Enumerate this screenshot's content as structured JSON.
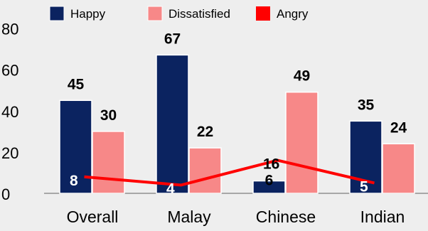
{
  "chart_data": {
    "type": "bar",
    "categories": [
      "Overall",
      "Malay",
      "Chinese",
      "Indian"
    ],
    "series": [
      {
        "name": "Happy",
        "type": "bar",
        "color": "#0b2360",
        "values": [
          45,
          67,
          6,
          35
        ]
      },
      {
        "name": "Dissatisfied",
        "type": "bar",
        "color": "#f78888",
        "values": [
          30,
          22,
          49,
          24
        ]
      },
      {
        "name": "Angry",
        "type": "line",
        "color": "#ff0000",
        "values": [
          8,
          4,
          16,
          5
        ]
      }
    ],
    "yticks": [
      "0",
      "20",
      "40",
      "60",
      "80"
    ],
    "ylim": [
      0,
      80
    ],
    "grid": false,
    "legend_position": "top",
    "data_labels": true
  }
}
